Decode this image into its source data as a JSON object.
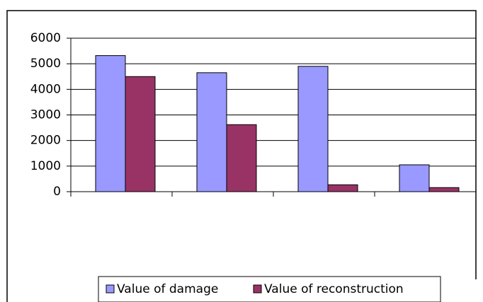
{
  "chart_data": {
    "type": "bar",
    "categories": [
      null,
      null,
      null,
      null
    ],
    "series": [
      {
        "name": "Value of damage",
        "color": "#9999ff",
        "values": [
          5320,
          4650,
          4900,
          1050
        ]
      },
      {
        "name": "Value of reconstruction",
        "color": "#993366",
        "values": [
          4500,
          2620,
          270,
          160
        ]
      }
    ],
    "ylim": [
      0,
      6000
    ],
    "yticks": [
      0,
      1000,
      2000,
      3000,
      4000,
      5000,
      6000
    ],
    "grid": true,
    "legend": "bottom"
  }
}
